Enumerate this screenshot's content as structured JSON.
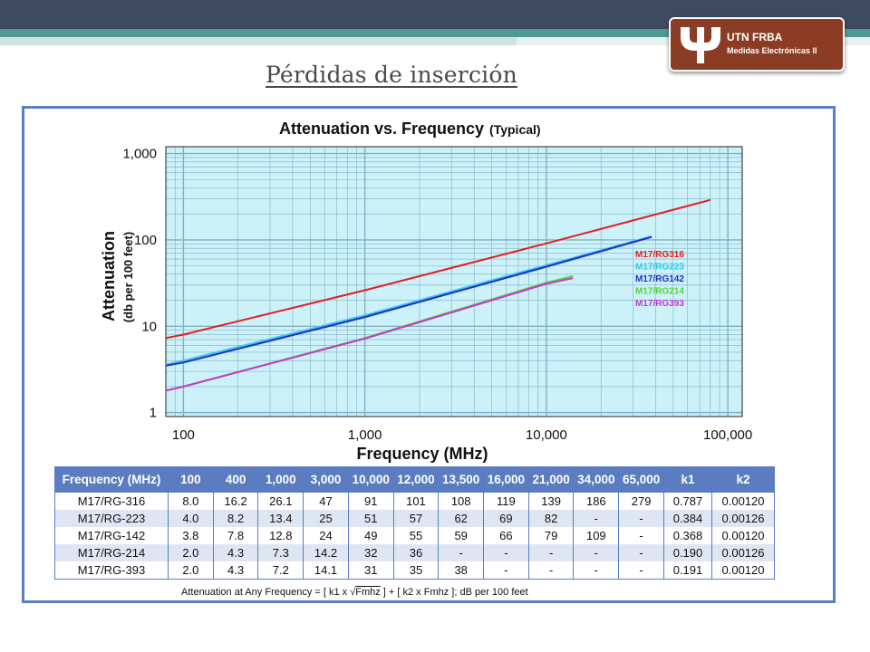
{
  "slide": {
    "title": "Pérdidas de inserción"
  },
  "logo": {
    "line1": "UTN FRBA",
    "line2": "Medidas Electrónicas II"
  },
  "chart_data": {
    "type": "line",
    "title": "Attenuation vs. Frequency",
    "subtitle": "(Typical)",
    "xlabel": "Frequency (MHz)",
    "ylabel": "Attenuation",
    "ylabel2": "(db per 100 feet)",
    "x_scale": "log",
    "y_scale": "log",
    "xlim": [
      80,
      120000
    ],
    "ylim": [
      0.9,
      1200
    ],
    "x_ticks": [
      100,
      1000,
      10000,
      100000
    ],
    "x_tick_labels": [
      "100",
      "1,000",
      "10,000",
      "100,000"
    ],
    "y_ticks": [
      1,
      10,
      100,
      1000
    ],
    "y_tick_labels": [
      "1",
      "10",
      "100",
      "1,000"
    ],
    "grid": true,
    "series": [
      {
        "name": "M17/RG316",
        "color": "#e02020",
        "x": [
          80,
          100,
          1000,
          10000,
          80000
        ],
        "y": [
          7.3,
          8.0,
          26.1,
          91,
          290
        ]
      },
      {
        "name": "M17/RG223",
        "color": "#39c6ee",
        "x": [
          80,
          100,
          1000,
          10000,
          38000
        ],
        "y": [
          3.6,
          4.0,
          13.4,
          51,
          110
        ]
      },
      {
        "name": "M17/RG142",
        "color": "#1c2fc8",
        "x": [
          80,
          100,
          1000,
          10000,
          38000
        ],
        "y": [
          3.5,
          3.8,
          12.8,
          49,
          108
        ]
      },
      {
        "name": "M17/RG214",
        "color": "#5ad13a",
        "x": [
          80,
          100,
          1000,
          10000,
          14000
        ],
        "y": [
          1.8,
          2.0,
          7.3,
          32,
          38
        ]
      },
      {
        "name": "M17/RG393",
        "color": "#c23cc8",
        "x": [
          80,
          100,
          1000,
          10000,
          14000
        ],
        "y": [
          1.8,
          2.0,
          7.2,
          31,
          36
        ]
      }
    ],
    "legend": "right"
  },
  "table": {
    "headers": [
      "Frequency (MHz)",
      "100",
      "400",
      "1,000",
      "3,000",
      "10,000",
      "12,000",
      "13,500",
      "16,000",
      "21,000",
      "34,000",
      "65,000",
      "k1",
      "k2"
    ],
    "rows": [
      [
        "M17/RG-316",
        "8.0",
        "16.2",
        "26.1",
        "47",
        "91",
        "101",
        "108",
        "119",
        "139",
        "186",
        "279",
        "0.787",
        "0.00120"
      ],
      [
        "M17/RG-223",
        "4.0",
        "8.2",
        "13.4",
        "25",
        "51",
        "57",
        "62",
        "69",
        "82",
        "-",
        "-",
        "0.384",
        "0.00126"
      ],
      [
        "M17/RG-142",
        "3.8",
        "7.8",
        "12.8",
        "24",
        "49",
        "55",
        "59",
        "66",
        "79",
        "109",
        "-",
        "0.368",
        "0.00120"
      ],
      [
        "M17/RG-214",
        "2.0",
        "4.3",
        "7.3",
        "14.2",
        "32",
        "36",
        "-",
        "-",
        "-",
        "-",
        "-",
        "0.190",
        "0.00126"
      ],
      [
        "M17/RG-393",
        "2.0",
        "4.3",
        "7.2",
        "14.1",
        "31",
        "35",
        "38",
        "-",
        "-",
        "-",
        "-",
        "0.191",
        "0.00120"
      ]
    ],
    "formula_a": "Attenuation at Any Frequency = [ k1 x ",
    "formula_root": "Fmhz",
    "formula_b": " ] + [ k2 x Fmhz ]; dB per 100 feet"
  }
}
